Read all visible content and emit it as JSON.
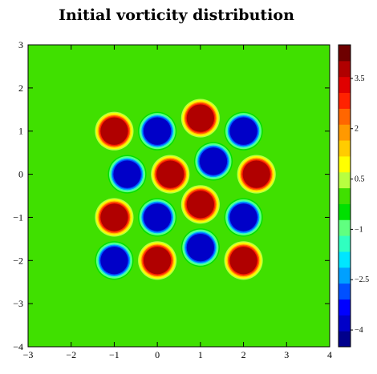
{
  "chart_data": {
    "type": "heatmap",
    "title": "Initial vorticity distribution",
    "xlabel": "",
    "ylabel": "",
    "xlim": [
      -3,
      4
    ],
    "ylim": [
      -4,
      3
    ],
    "x_ticks": [
      "−3",
      "−2",
      "−1",
      "0",
      "1",
      "2",
      "3",
      "4"
    ],
    "y_ticks": [
      "3",
      "2",
      "1",
      "0",
      "−1",
      "−2",
      "−3",
      "−4"
    ],
    "x_tick_values": [
      -3,
      -2,
      -1,
      0,
      1,
      2,
      3,
      4
    ],
    "y_tick_values": [
      3,
      2,
      1,
      0,
      -1,
      -2,
      -3,
      -4
    ],
    "background_value": 0,
    "vortices": [
      {
        "x": -1.0,
        "y": 1.0,
        "strength": 4
      },
      {
        "x": 0.0,
        "y": 1.0,
        "strength": -4
      },
      {
        "x": 1.0,
        "y": 1.3,
        "strength": 4
      },
      {
        "x": 2.0,
        "y": 1.0,
        "strength": -4
      },
      {
        "x": -0.7,
        "y": 0.0,
        "strength": -4
      },
      {
        "x": 0.3,
        "y": 0.0,
        "strength": 4
      },
      {
        "x": 1.3,
        "y": 0.3,
        "strength": -4
      },
      {
        "x": 2.3,
        "y": 0.0,
        "strength": 4
      },
      {
        "x": -1.0,
        "y": -1.0,
        "strength": 4
      },
      {
        "x": 0.0,
        "y": -1.0,
        "strength": -4
      },
      {
        "x": 1.0,
        "y": -0.7,
        "strength": 4
      },
      {
        "x": 2.0,
        "y": -1.0,
        "strength": -4
      },
      {
        "x": -1.0,
        "y": -2.0,
        "strength": -4
      },
      {
        "x": 0.0,
        "y": -2.0,
        "strength": 4
      },
      {
        "x": 1.0,
        "y": -1.7,
        "strength": -4
      },
      {
        "x": 2.0,
        "y": -2.0,
        "strength": 4
      }
    ],
    "vortex_radius": 0.4,
    "colorbar": {
      "range": [
        -4.5,
        4.5
      ],
      "labels": [
        "3.5",
        "2",
        "0.5",
        "−1",
        "−2.5",
        "−4"
      ],
      "label_values": [
        3.5,
        2,
        0.5,
        -1,
        -2.5,
        -4
      ],
      "colors": [
        "#00008c",
        "#0000c8",
        "#0000ff",
        "#0050ff",
        "#00a0ff",
        "#00e6ff",
        "#30ffc0",
        "#60ff80",
        "#00e000",
        "#40e000",
        "#b8ff40",
        "#ffff00",
        "#ffcc00",
        "#ff9900",
        "#ff6600",
        "#ff2200",
        "#e00000",
        "#b00000",
        "#6e0000"
      ]
    }
  }
}
